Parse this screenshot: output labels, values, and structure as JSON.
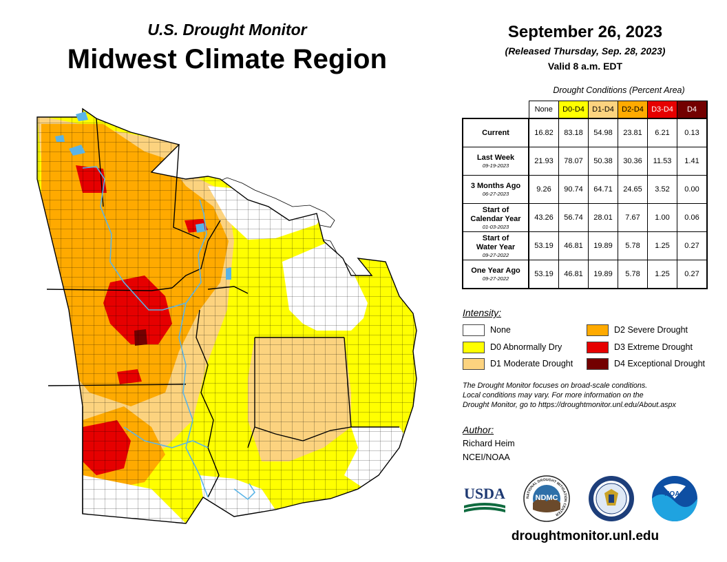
{
  "header": {
    "subtitle": "U.S. Drought Monitor",
    "title": "Midwest Climate Region",
    "date": "September 26, 2023",
    "released": "(Released Thursday, Sep. 28, 2023)",
    "valid": "Valid 8 a.m. EDT"
  },
  "table": {
    "caption": "Drought Conditions (Percent Area)",
    "columns": [
      {
        "label": "None",
        "color": "#ffffff",
        "text_color": "#000000"
      },
      {
        "label": "D0-D4",
        "color": "#ffff00",
        "text_color": "#000000"
      },
      {
        "label": "D1-D4",
        "color": "#fcd37f",
        "text_color": "#000000"
      },
      {
        "label": "D2-D4",
        "color": "#ffaa00",
        "text_color": "#000000"
      },
      {
        "label": "D3-D4",
        "color": "#e60000",
        "text_color": "#ffffff"
      },
      {
        "label": "D4",
        "color": "#730000",
        "text_color": "#ffffff"
      }
    ],
    "rows": [
      {
        "label": "Current",
        "label2": "",
        "date": "",
        "values": [
          "16.82",
          "83.18",
          "54.98",
          "23.81",
          "6.21",
          "0.13"
        ]
      },
      {
        "label": "Last Week",
        "label2": "",
        "date": "09-19-2023",
        "values": [
          "21.93",
          "78.07",
          "50.38",
          "30.36",
          "11.53",
          "1.41"
        ]
      },
      {
        "label": "3 Months Ago",
        "label2": "",
        "date": "06-27-2023",
        "values": [
          "9.26",
          "90.74",
          "64.71",
          "24.65",
          "3.52",
          "0.00"
        ]
      },
      {
        "label": "Start of",
        "label2": "Calendar Year",
        "date": "01-03-2023",
        "values": [
          "43.26",
          "56.74",
          "28.01",
          "7.67",
          "1.00",
          "0.06"
        ]
      },
      {
        "label": "Start of",
        "label2": "Water Year",
        "date": "09-27-2022",
        "values": [
          "53.19",
          "46.81",
          "19.89",
          "5.78",
          "1.25",
          "0.27"
        ]
      },
      {
        "label": "One Year Ago",
        "label2": "",
        "date": "09-27-2022",
        "values": [
          "53.19",
          "46.81",
          "19.89",
          "5.78",
          "1.25",
          "0.27"
        ]
      }
    ]
  },
  "legend": {
    "heading": "Intensity:",
    "items": [
      {
        "label": "None",
        "color": "#ffffff"
      },
      {
        "label": "D0 Abnormally Dry",
        "color": "#ffff00"
      },
      {
        "label": "D1 Moderate Drought",
        "color": "#fcd37f"
      },
      {
        "label": "D2 Severe Drought",
        "color": "#ffaa00"
      },
      {
        "label": "D3 Extreme Drought",
        "color": "#e60000"
      },
      {
        "label": "D4 Exceptional Drought",
        "color": "#730000"
      }
    ]
  },
  "note": {
    "line1": "The Drought Monitor focuses on broad-scale conditions.",
    "line2": "Local conditions may vary. For more information on the",
    "line3": "Drought Monitor, go to https://droughtmonitor.unl.edu/About.aspx"
  },
  "author": {
    "heading": "Author:",
    "name": "Richard Heim",
    "org": "NCEI/NOAA"
  },
  "logos": {
    "usda": "USDA",
    "ndmc": "NDMC",
    "ndmc_ring": "NATIONAL DROUGHT MITIGATION CENTER",
    "noaa": "NOAA"
  },
  "website": "droughtmonitor.unl.edu",
  "map": {
    "colors": {
      "none": "#ffffff",
      "d0": "#ffff00",
      "d1": "#fcd37f",
      "d2": "#ffaa00",
      "d3": "#e60000",
      "d4": "#730000",
      "water": "#5ab4e6",
      "border": "#000000"
    }
  }
}
